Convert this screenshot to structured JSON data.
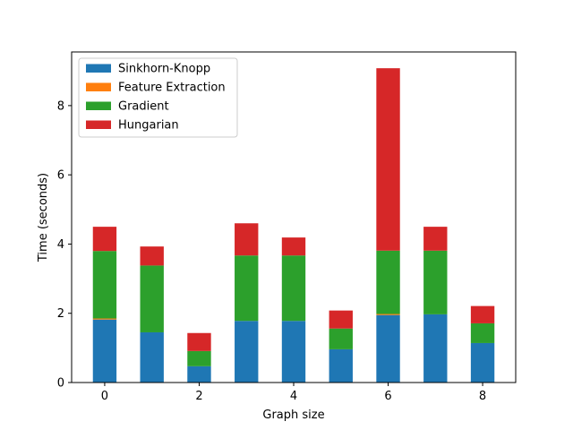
{
  "chart_data": {
    "type": "bar",
    "stacked": true,
    "title": "",
    "xlabel": "Graph size",
    "ylabel": "Time (seconds)",
    "x": [
      0,
      1,
      2,
      3,
      4,
      5,
      6,
      7,
      8
    ],
    "xticks": [
      0,
      2,
      4,
      6,
      8
    ],
    "yticks": [
      0,
      2,
      4,
      6,
      8
    ],
    "xlim": [
      -0.7,
      8.7
    ],
    "ylim": [
      0,
      9.55
    ],
    "grid": false,
    "legend": "top-left",
    "series": [
      {
        "name": "Sinkhorn-Knopp",
        "color": "#1f77b4",
        "values": [
          1.82,
          1.45,
          0.47,
          1.78,
          1.78,
          0.96,
          1.95,
          1.97,
          1.14
        ]
      },
      {
        "name": "Feature Extraction",
        "color": "#ff7f0e",
        "values": [
          0.03,
          0.0,
          0.0,
          0.0,
          0.0,
          0.0,
          0.03,
          0.0,
          0.0
        ]
      },
      {
        "name": "Gradient",
        "color": "#2ca02c",
        "values": [
          1.95,
          1.93,
          0.44,
          1.89,
          1.89,
          0.6,
          1.83,
          1.84,
          0.57
        ]
      },
      {
        "name": "Hungarian",
        "color": "#d62728",
        "values": [
          0.7,
          0.55,
          0.52,
          0.93,
          0.52,
          0.52,
          5.27,
          0.69,
          0.5
        ]
      }
    ]
  }
}
